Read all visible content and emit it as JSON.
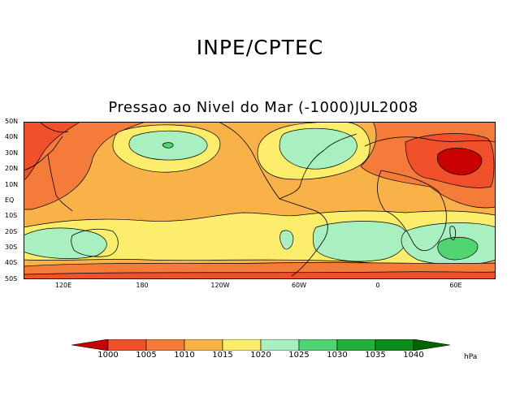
{
  "header": {
    "title": "INPE/CPTEC"
  },
  "map": {
    "title": "Pressao ao Nivel do Mar (-1000)JUL2008",
    "lat_labels": [
      "50N",
      "40N",
      "30N",
      "20N",
      "10N",
      "EQ",
      "10S",
      "20S",
      "30S",
      "40S",
      "50S"
    ],
    "lon_labels": [
      "120E",
      "180",
      "120W",
      "60W",
      "0",
      "60E"
    ],
    "colors": {
      "lt1000": "#c80000",
      "1000_1005": "#f0502a",
      "1005_1010": "#f47b3a",
      "1010_1015": "#f8b248",
      "1015_1020": "#fcee6a",
      "1020_1025": "#a8f0c0",
      "1025_1030": "#52d472",
      "1030_1035": "#24b038",
      "1035_1040": "#0c8c18",
      "gt1040": "#006400",
      "coast": "#000000"
    }
  },
  "legend": {
    "labels": [
      "1000",
      "1005",
      "1010",
      "1015",
      "1020",
      "1025",
      "1030",
      "1035",
      "1040"
    ],
    "unit": "hPa",
    "colors": [
      "#c80000",
      "#f0502a",
      "#f47b3a",
      "#f8b248",
      "#fcee6a",
      "#a8f0c0",
      "#52d472",
      "#24b038",
      "#0c8c18",
      "#006400"
    ]
  }
}
